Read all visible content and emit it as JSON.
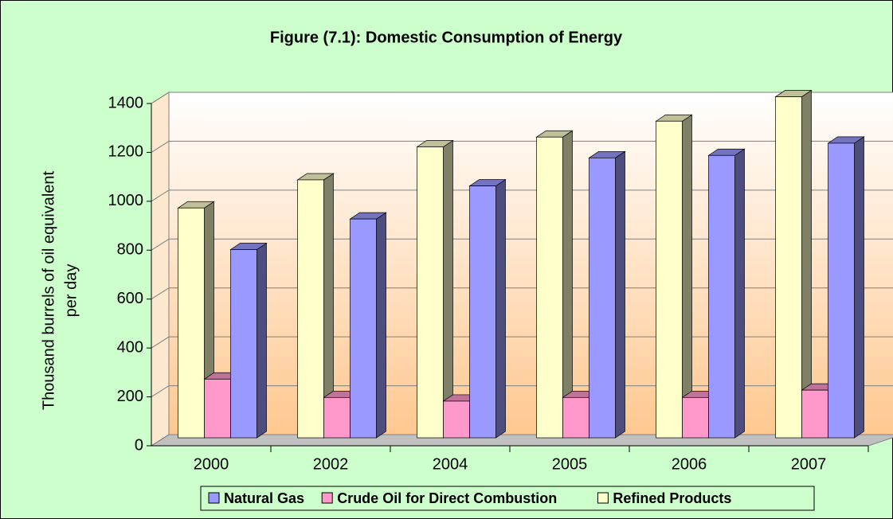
{
  "chart_data": {
    "type": "bar3d",
    "title": "Figure (7.1): Domestic Consumption of Energy",
    "y_label": [
      "Thousand burrels of oil equivalent",
      "per day"
    ],
    "categories": [
      "2000",
      "2002",
      "2004",
      "2005",
      "2006",
      "2007"
    ],
    "series": [
      {
        "name": "Natural Gas",
        "color": "#9999ff",
        "values": [
          770,
          895,
          1030,
          1145,
          1155,
          1205
        ]
      },
      {
        "name": "Crude Oil for Direct Combustion",
        "color": "#ff99cc",
        "values": [
          240,
          165,
          150,
          165,
          165,
          195
        ]
      },
      {
        "name": "Refined Products",
        "color": "#ffffcc",
        "values": [
          940,
          1055,
          1190,
          1230,
          1295,
          1395
        ]
      }
    ],
    "bar_order": [
      2,
      1,
      0
    ],
    "ylim": [
      0,
      1400
    ],
    "yticks": [
      0,
      200,
      400,
      600,
      800,
      1000,
      1200,
      1400
    ],
    "grid": true
  }
}
